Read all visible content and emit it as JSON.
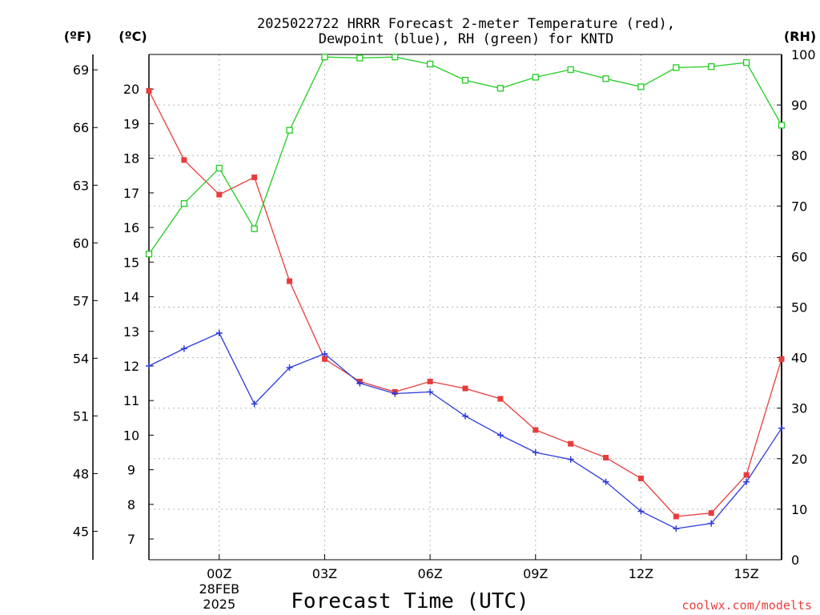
{
  "colors": {
    "temperature": "#e83c3c",
    "dewpoint": "#2b3bdc",
    "rh": "#22cc22",
    "credit": "#e8403f"
  },
  "chart_data": {
    "type": "line",
    "title_line1": "2025022722 HRRR Forecast 2-meter Temperature (red),",
    "title_line2": "Dewpoint (blue), RH (green) for KNTD",
    "xlabel": "Forecast Time (UTC)",
    "credit": "coolwx.com/modelts",
    "x_hours": [
      -2,
      -1,
      0,
      1,
      2,
      3,
      4,
      5,
      6,
      7,
      8,
      9,
      10,
      11,
      12,
      13,
      14,
      15,
      16
    ],
    "x_ticks": [
      {
        "hour": 0,
        "label": "00Z",
        "sub1": "28FEB",
        "sub2": "2025"
      },
      {
        "hour": 3,
        "label": "03Z",
        "sub1": "",
        "sub2": ""
      },
      {
        "hour": 6,
        "label": "06Z",
        "sub1": "",
        "sub2": ""
      },
      {
        "hour": 9,
        "label": "09Z",
        "sub1": "",
        "sub2": ""
      },
      {
        "hour": 12,
        "label": "12Z",
        "sub1": "",
        "sub2": ""
      },
      {
        "hour": 15,
        "label": "15Z",
        "sub1": "",
        "sub2": ""
      }
    ],
    "xlim": [
      -2,
      16
    ],
    "axes": {
      "fahrenheit": {
        "label": "(ºF)",
        "ticks": [
          "45",
          "48",
          "51",
          "54",
          "57",
          "60",
          "63",
          "66",
          "69"
        ]
      },
      "celsius": {
        "label": "(ºC)",
        "ylim": [
          6.4,
          21
        ],
        "ticks": [
          "7",
          "8",
          "9",
          "10",
          "11",
          "12",
          "13",
          "14",
          "15",
          "16",
          "17",
          "18",
          "19",
          "20"
        ]
      },
      "rh": {
        "label": "(RH)",
        "ylim": [
          0,
          100
        ],
        "ticks": [
          "0",
          "10",
          "20",
          "30",
          "40",
          "50",
          "60",
          "70",
          "80",
          "90",
          "100"
        ]
      }
    },
    "grid": true,
    "series": [
      {
        "name": "Temperature",
        "axis": "celsius",
        "marker": "filled-square",
        "values": [
          19.95,
          17.95,
          16.95,
          17.45,
          14.45,
          12.2,
          11.55,
          11.25,
          11.55,
          11.35,
          11.05,
          10.15,
          9.75,
          9.35,
          8.75,
          7.65,
          7.75,
          8.85,
          12.2
        ]
      },
      {
        "name": "Dewpoint",
        "axis": "celsius",
        "marker": "plus",
        "values": [
          12.0,
          12.5,
          12.95,
          10.9,
          11.95,
          12.35,
          11.5,
          11.2,
          11.25,
          10.55,
          10.0,
          9.5,
          9.3,
          8.65,
          7.8,
          7.3,
          7.45,
          8.65,
          10.2
        ]
      },
      {
        "name": "RH",
        "axis": "rh",
        "marker": "open-square",
        "values": [
          60.5,
          70.5,
          77.5,
          65.5,
          85.0,
          99.5,
          99.3,
          99.5,
          98.1,
          94.9,
          93.3,
          95.5,
          97.0,
          95.2,
          93.6,
          97.4,
          97.6,
          98.4,
          86.0
        ]
      }
    ]
  }
}
